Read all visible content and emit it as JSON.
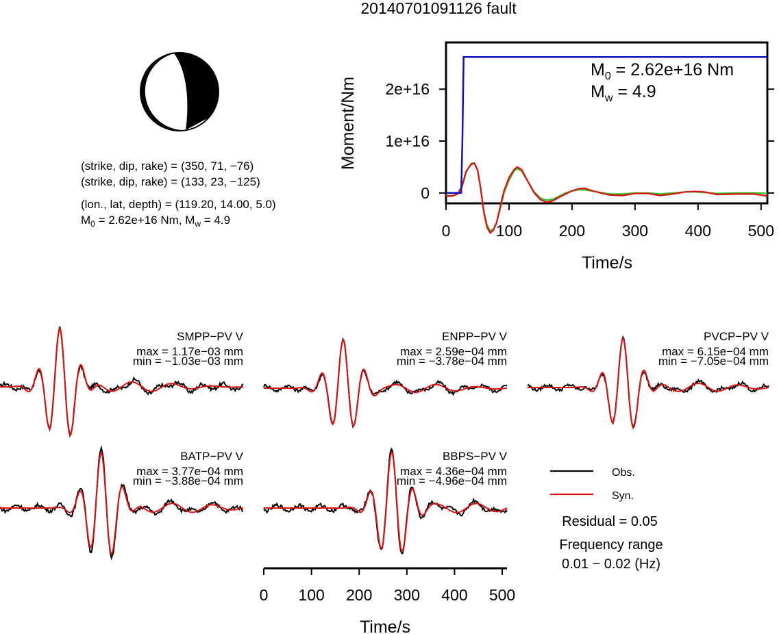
{
  "title": "20140701091126 fault",
  "colors": {
    "obs": "#000000",
    "syn": "#dd1111",
    "moment": "#1111cc",
    "rate_green": "#33bb22",
    "rate_red": "#dd1111"
  },
  "event_info": {
    "line1": "(strike, dip, rake) = (350, 71, −76)",
    "line2": "(strike, dip, rake) = (133, 23, −125)",
    "line3": "(lon., lat, depth) = (119.20, 14.00, 5.0)",
    "line4_prefix": "M",
    "line4_sub": "0",
    "line4_rest": " = 2.62e+16 Nm, M",
    "line4_sub2": "w",
    "line4_end": " = 4.9"
  },
  "moment_panel": {
    "m0_prefix": "M",
    "m0_sub": "0",
    "m0_value": " = 2.62e+16 Nm",
    "mw_prefix": "M",
    "mw_sub": "w",
    "mw_value": " = 4.9"
  },
  "legend": {
    "obs": "Obs.",
    "syn": "Syn.",
    "residual": "Residual = 0.05",
    "freq_title": "Frequency range",
    "freq_value": "0.01 − 0.02 (Hz)"
  },
  "chart_data": [
    {
      "type": "line",
      "ylabel": "Moment/Nm",
      "xlabel": "Time/s",
      "xlim": [
        0,
        510
      ],
      "ylim": [
        -2000000000000000.0,
        2.9e+16
      ],
      "xticks": [
        0,
        100,
        200,
        300,
        400,
        500
      ],
      "xtick_labels": [
        "0",
        "100",
        "200",
        "300",
        "400",
        "500"
      ],
      "yticks": [
        0,
        1e+16,
        2e+16
      ],
      "ytick_labels": [
        "0",
        "1e+16",
        "2e+16"
      ],
      "moment_curve": {
        "x": [
          0,
          24,
          26,
          28,
          510
        ],
        "y": [
          0,
          0,
          1e+16,
          2.62e+16,
          2.62e+16
        ]
      },
      "rate_curves": [
        {
          "name": "green",
          "x": [
            0,
            10,
            18,
            25,
            32,
            40,
            45,
            50,
            55,
            60,
            65,
            70,
            75,
            80,
            85,
            92,
            100,
            108,
            113,
            120,
            130,
            140,
            150,
            160,
            170,
            180,
            190,
            200,
            210,
            220,
            230,
            245,
            260,
            280,
            300,
            320,
            340,
            360,
            380,
            395,
            410,
            430,
            460,
            490,
            510
          ],
          "y": [
            -500000000000000.0,
            -500000000000000.0,
            -200000000000000.0,
            1000000000000000.0,
            4000000000000000.0,
            5700000000000000.0,
            5800000000000000.0,
            4500000000000000.0,
            1000000000000000.0,
            -3500000000000000.0,
            -6200000000000000.0,
            -7300000000000000.0,
            -7000000000000000.0,
            -5800000000000000.0,
            -3500000000000000.0,
            0.0,
            2500000000000000.0,
            4200000000000000.0,
            4700000000000000.0,
            4200000000000000.0,
            2200000000000000.0,
            200000000000000.0,
            -1000000000000000.0,
            -1400000000000000.0,
            -1200000000000000.0,
            -600000000000000.0,
            0.0,
            400000000000000.0,
            600000000000000.0,
            600000000000000.0,
            400000000000000.0,
            100000000000000.0,
            -200000000000000.0,
            -200000000000000.0,
            0.0,
            0.0,
            -200000000000000.0,
            0.0,
            200000000000000.0,
            200000000000000.0,
            100000000000000.0,
            -100000000000000.0,
            0.0,
            0.0,
            -100000000000000.0
          ]
        },
        {
          "name": "red",
          "x": [
            0,
            10,
            18,
            25,
            32,
            40,
            45,
            50,
            55,
            60,
            65,
            70,
            75,
            80,
            85,
            92,
            100,
            108,
            113,
            120,
            130,
            140,
            150,
            160,
            170,
            180,
            190,
            200,
            210,
            220,
            230,
            245,
            260,
            280,
            300,
            320,
            340,
            360,
            380,
            395,
            410,
            430,
            460,
            490,
            510
          ],
          "y": [
            -600000000000000.0,
            -600000000000000.0,
            -200000000000000.0,
            1200000000000000.0,
            4200000000000000.0,
            5500000000000000.0,
            5700000000000000.0,
            4400000000000000.0,
            800000000000000.0,
            -3800000000000000.0,
            -6600000000000000.0,
            -7700000000000000.0,
            -7200000000000000.0,
            -5800000000000000.0,
            -3200000000000000.0,
            400000000000000.0,
            3000000000000000.0,
            4500000000000000.0,
            5000000000000000.0,
            4500000000000000.0,
            2200000000000000.0,
            0.0,
            -1300000000000000.0,
            -1800000000000000.0,
            -1500000000000000.0,
            -800000000000000.0,
            -200000000000000.0,
            400000000000000.0,
            800000000000000.0,
            900000000000000.0,
            500000000000000.0,
            0.0,
            -400000000000000.0,
            -500000000000000.0,
            -100000000000000.0,
            -100000000000000.0,
            -500000000000000.0,
            -200000000000000.0,
            200000000000000.0,
            300000000000000.0,
            200000000000000.0,
            -300000000000000.0,
            -200000000000000.0,
            -200000000000000.0,
            -600000000000000.0
          ]
        }
      ]
    },
    {
      "type": "line",
      "xlabel": "Time/s",
      "xlim": [
        0,
        510
      ],
      "xticks": [
        0,
        100,
        200,
        300,
        400,
        500
      ],
      "xtick_labels": [
        "0",
        "100",
        "200",
        "300",
        "400",
        "500"
      ],
      "stations": [
        {
          "name": "SMPP−PV V",
          "max": "max = 1.17e−03 mm",
          "min": "min = −1.03e−03 mm"
        },
        {
          "name": "ENPP−PV V",
          "max": "max = 2.59e−04 mm",
          "min": "min = −3.78e−04 mm"
        },
        {
          "name": "PVCP−PV V",
          "max": "max = 6.15e−04 mm",
          "min": "min = −7.05e−04 mm"
        },
        {
          "name": "BATP−PV V",
          "max": "max = 3.77e−04 mm",
          "min": "min = −3.88e−04 mm"
        },
        {
          "name": "BBPS−PV V",
          "max": "max = 4.36e−04 mm",
          "min": "min = −4.96e−04 mm"
        }
      ]
    }
  ]
}
